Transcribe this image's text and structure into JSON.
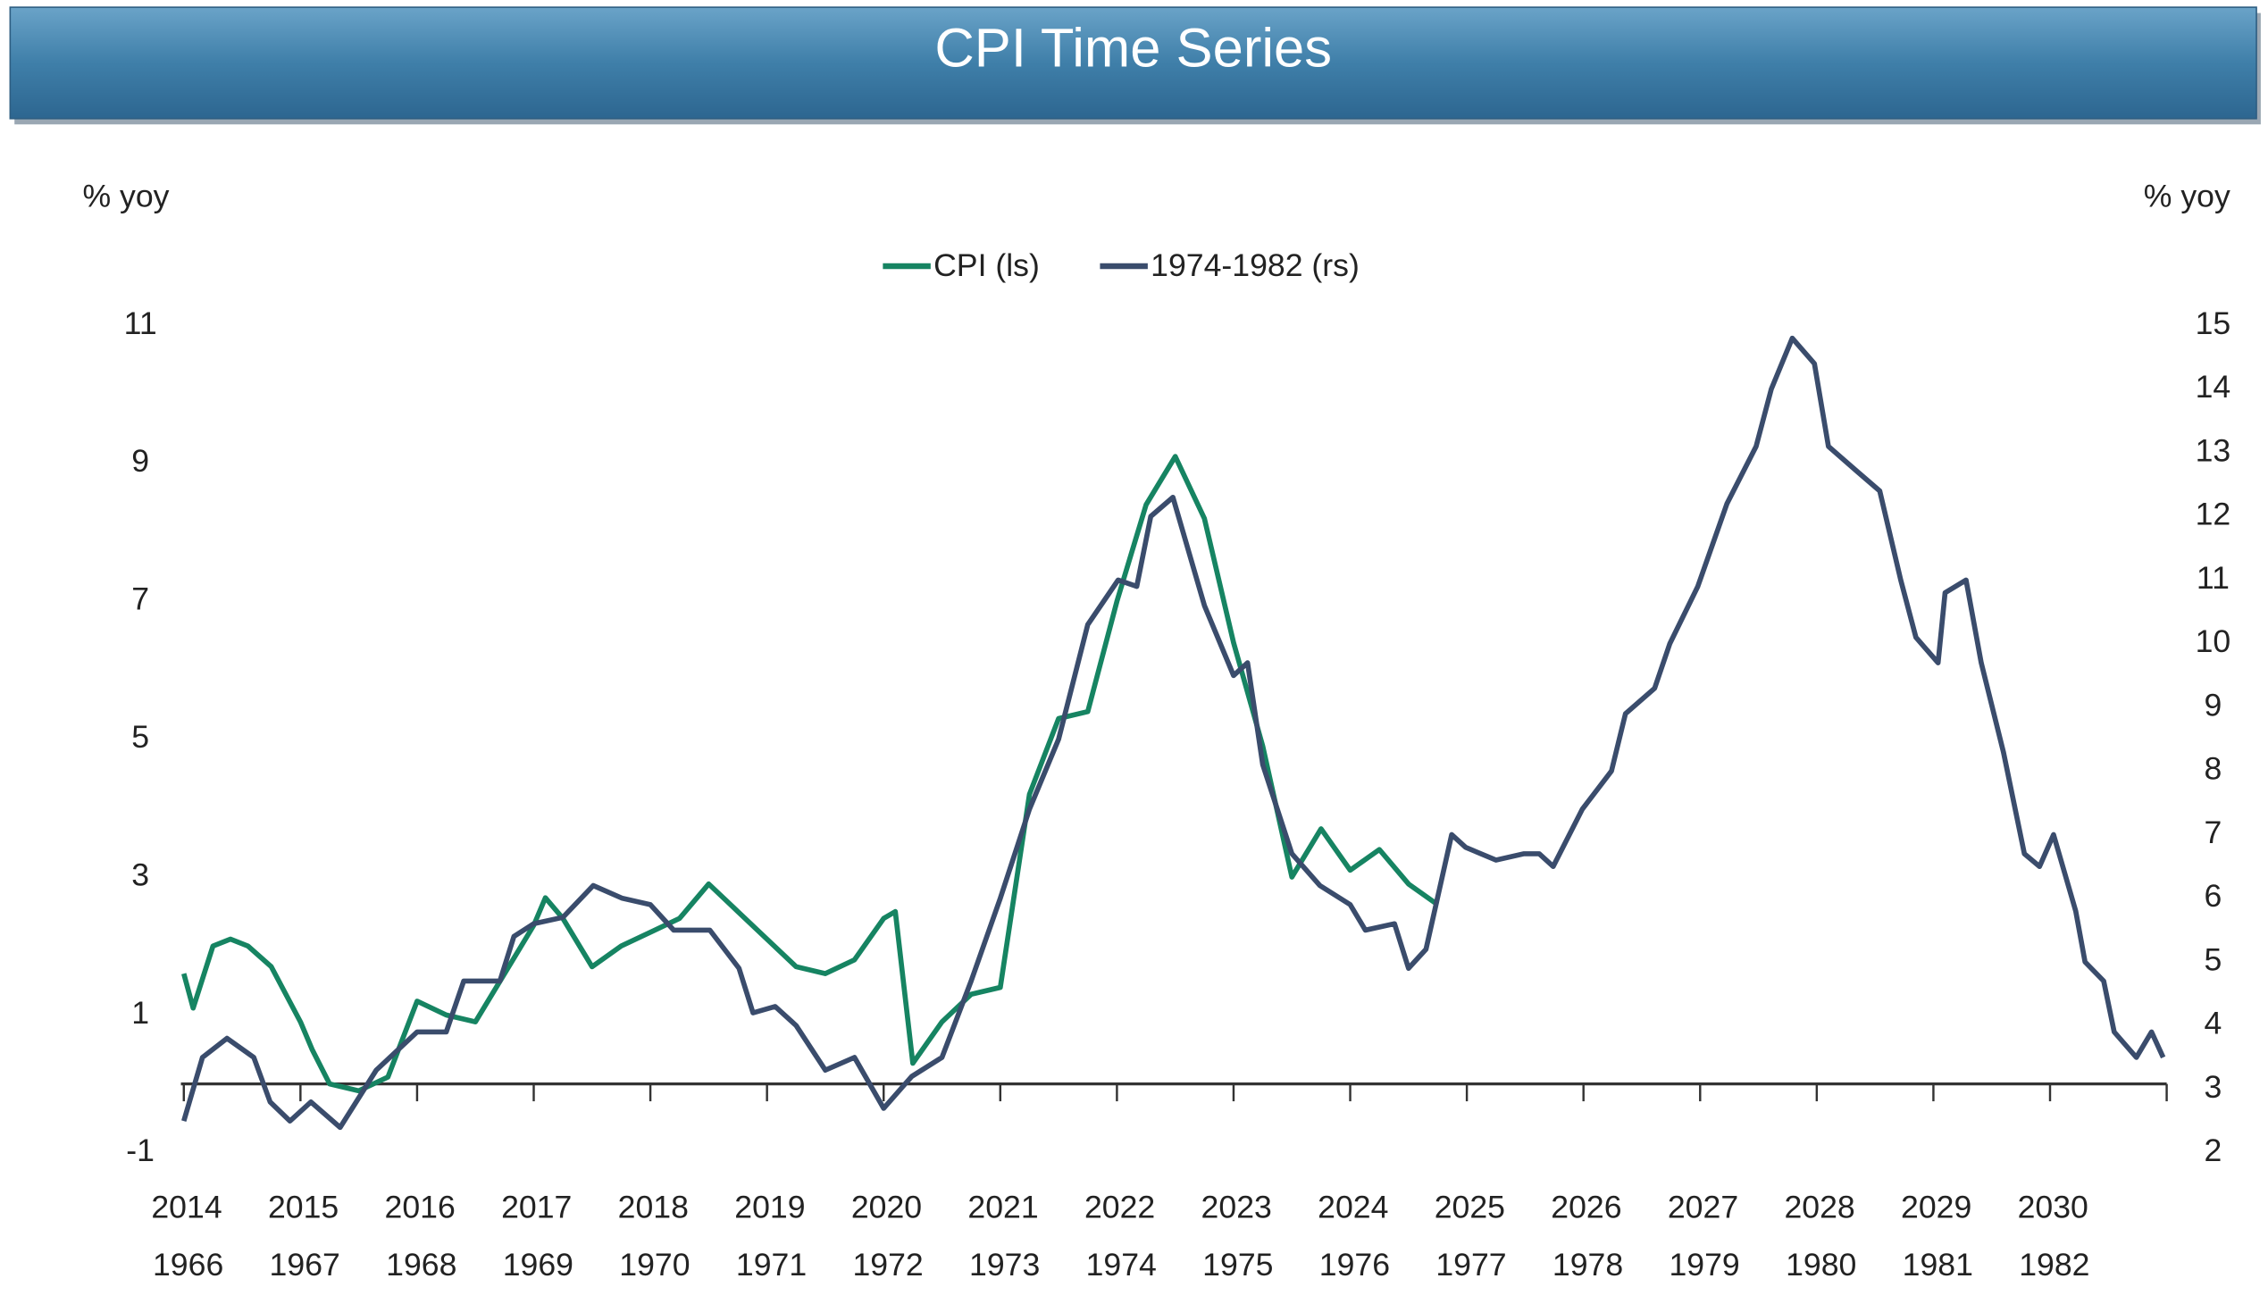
{
  "chart_data": {
    "type": "line",
    "title": "CPI Time Series",
    "ylabel": "% yoy",
    "y2label": "% yoy",
    "xlim": [
      2014,
      2031
    ],
    "xticks": [
      2014,
      2015,
      2016,
      2017,
      2018,
      2019,
      2020,
      2021,
      2022,
      2023,
      2024,
      2025,
      2026,
      2027,
      2028,
      2029,
      2030
    ],
    "x2ticks": [
      {
        "value": 2014,
        "label": "1966"
      },
      {
        "value": 2015,
        "label": "1967"
      },
      {
        "value": 2016,
        "label": "1968"
      },
      {
        "value": 2017,
        "label": "1969"
      },
      {
        "value": 2018,
        "label": "1970"
      },
      {
        "value": 2019,
        "label": "1971"
      },
      {
        "value": 2020,
        "label": "1972"
      },
      {
        "value": 2021,
        "label": "1973"
      },
      {
        "value": 2022,
        "label": "1974"
      },
      {
        "value": 2023,
        "label": "1975"
      },
      {
        "value": 2024,
        "label": "1976"
      },
      {
        "value": 2025,
        "label": "1977"
      },
      {
        "value": 2026,
        "label": "1978"
      },
      {
        "value": 2027,
        "label": "1979"
      },
      {
        "value": 2028,
        "label": "1980"
      },
      {
        "value": 2029,
        "label": "1981"
      },
      {
        "value": 2030,
        "label": "1982"
      }
    ],
    "ylim": [
      -1,
      11
    ],
    "yticks": [
      -1,
      1,
      3,
      5,
      7,
      9,
      11
    ],
    "y2lim": [
      2,
      15
    ],
    "y2ticks": [
      2,
      3,
      4,
      5,
      6,
      7,
      8,
      9,
      10,
      11,
      12,
      13,
      14,
      15
    ],
    "legend": "top",
    "series": [
      {
        "name": "CPI (ls)",
        "color": "#168462",
        "axis": "y",
        "x": [
          2014.0,
          2014.08,
          2014.25,
          2014.4,
          2014.55,
          2014.75,
          2015.0,
          2015.1,
          2015.25,
          2015.5,
          2015.75,
          2016.0,
          2016.25,
          2016.5,
          2016.75,
          2017.0,
          2017.1,
          2017.25,
          2017.5,
          2017.75,
          2018.0,
          2018.25,
          2018.5,
          2018.75,
          2019.0,
          2019.25,
          2019.5,
          2019.75,
          2020.0,
          2020.1,
          2020.25,
          2020.5,
          2020.75,
          2021.0,
          2021.25,
          2021.5,
          2021.75,
          2022.0,
          2022.25,
          2022.5,
          2022.75,
          2023.0,
          2023.25,
          2023.5,
          2023.75,
          2024.0,
          2024.25,
          2024.5,
          2024.75
        ],
        "values": [
          1.6,
          1.1,
          2.0,
          2.1,
          2.0,
          1.7,
          0.9,
          0.5,
          0.0,
          -0.1,
          0.1,
          1.2,
          1.0,
          0.9,
          1.6,
          2.3,
          2.7,
          2.4,
          1.7,
          2.0,
          2.2,
          2.4,
          2.9,
          2.5,
          2.1,
          1.7,
          1.6,
          1.8,
          2.4,
          2.5,
          0.3,
          0.9,
          1.3,
          1.4,
          4.2,
          5.3,
          5.4,
          7.0,
          8.4,
          9.1,
          8.2,
          6.4,
          4.9,
          3.0,
          3.7,
          3.1,
          3.4,
          2.9,
          2.6
        ]
      },
      {
        "name": "1974-1982 (rs)",
        "color": "#3a4c6c",
        "axis": "y2",
        "x": [
          2014.0,
          2014.16,
          2014.37,
          2014.6,
          2014.74,
          2014.91,
          2015.09,
          2015.34,
          2015.65,
          2016.0,
          2016.25,
          2016.4,
          2016.71,
          2016.83,
          2017.0,
          2017.25,
          2017.51,
          2017.76,
          2018.0,
          2018.2,
          2018.51,
          2018.76,
          2018.88,
          2019.07,
          2019.25,
          2019.5,
          2019.75,
          2020.0,
          2020.24,
          2020.5,
          2020.75,
          2021.0,
          2021.25,
          2021.5,
          2021.75,
          2022.01,
          2022.17,
          2022.29,
          2022.48,
          2022.75,
          2023.0,
          2023.12,
          2023.25,
          2023.5,
          2023.74,
          2024.0,
          2024.13,
          2024.38,
          2024.5,
          2024.65,
          2024.87,
          2024.99,
          2025.25,
          2025.49,
          2025.62,
          2025.74,
          2025.99,
          2026.24,
          2026.36,
          2026.61,
          2026.74,
          2026.98,
          2027.23,
          2027.48,
          2027.61,
          2027.79,
          2027.98,
          2028.1,
          2028.35,
          2028.54,
          2028.72,
          2028.85,
          2029.04,
          2029.1,
          2029.28,
          2029.41,
          2029.6,
          2029.78,
          2029.91,
          2030.03,
          2030.22,
          2030.3,
          2030.46,
          2030.55,
          2030.74,
          2030.87,
          2030.97
        ],
        "values": [
          2.5,
          3.5,
          3.8,
          3.5,
          2.8,
          2.5,
          2.8,
          2.4,
          3.3,
          3.9,
          3.9,
          4.7,
          4.7,
          5.4,
          5.6,
          5.7,
          6.2,
          6.0,
          5.9,
          5.5,
          5.5,
          4.9,
          4.2,
          4.3,
          4.0,
          3.3,
          3.5,
          2.7,
          3.2,
          3.5,
          4.7,
          6.0,
          7.4,
          8.5,
          10.3,
          11.0,
          10.9,
          12.0,
          12.3,
          10.6,
          9.5,
          9.7,
          8.1,
          6.7,
          6.2,
          5.9,
          5.5,
          5.6,
          4.9,
          5.2,
          7.0,
          6.8,
          6.6,
          6.7,
          6.7,
          6.5,
          7.4,
          8.0,
          8.9,
          9.3,
          10.0,
          10.9,
          12.2,
          13.1,
          14.0,
          14.8,
          14.4,
          13.1,
          12.7,
          12.4,
          11.0,
          10.1,
          9.7,
          10.8,
          11.0,
          9.7,
          8.3,
          6.7,
          6.5,
          7.0,
          5.8,
          5.0,
          4.7,
          3.9,
          3.5,
          3.9,
          3.5
        ]
      }
    ]
  }
}
